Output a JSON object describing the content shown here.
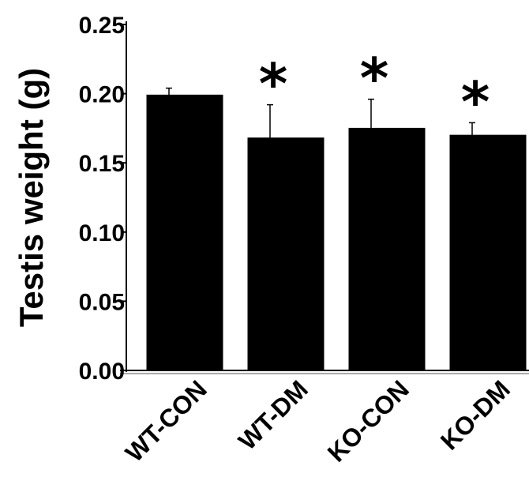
{
  "chart_data": {
    "type": "bar",
    "ylabel": "Testis weight (g)",
    "xlabel": "",
    "categories": [
      "WT-CON",
      "WT-DM",
      "KO-CON",
      "KO-DM"
    ],
    "values": [
      0.199,
      0.168,
      0.175,
      0.17
    ],
    "error_upper": [
      0.005,
      0.024,
      0.021,
      0.009
    ],
    "significance": [
      "",
      "*",
      "*",
      "*"
    ],
    "ylim": [
      0,
      0.25
    ],
    "yticks": [
      "0.00",
      "0.05",
      "0.10",
      "0.15",
      "0.20",
      "0.25"
    ],
    "bar_color": "#000000",
    "grid": false,
    "legend": "none"
  }
}
